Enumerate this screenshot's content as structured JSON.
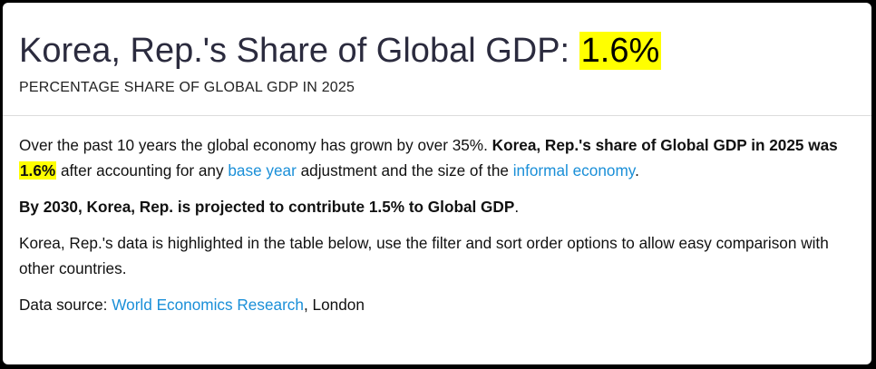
{
  "header": {
    "title_prefix": "Korea, Rep.'s Share of Global GDP: ",
    "title_value": "1.6%",
    "subtitle": "PERCENTAGE SHARE OF GLOBAL GDP IN 2025"
  },
  "paragraph1": {
    "intro": "Over the past 10 years the global economy has grown by over 35%. ",
    "bold_lead": "Korea, Rep.'s share of Global GDP in 2025 was ",
    "highlight_value": "1.6%",
    "after_value": " after accounting for any ",
    "link_base_year": "base year",
    "middle": " adjustment and the size of the ",
    "link_informal_economy": "informal economy",
    "end": "."
  },
  "paragraph2": {
    "bold_text": "By 2030, Korea, Rep. is projected to contribute 1.5% to Global GDP",
    "end": "."
  },
  "paragraph3": {
    "text": "Korea, Rep.'s data is highlighted in the table below, use the filter and sort order options to allow easy comparison with other countries."
  },
  "paragraph4": {
    "label": "Data source: ",
    "link_source": "World Economics Research",
    "suffix": ", London"
  },
  "colors": {
    "highlight": "#ffff00",
    "link": "#1a8fd8",
    "title": "#2b2b3e"
  }
}
